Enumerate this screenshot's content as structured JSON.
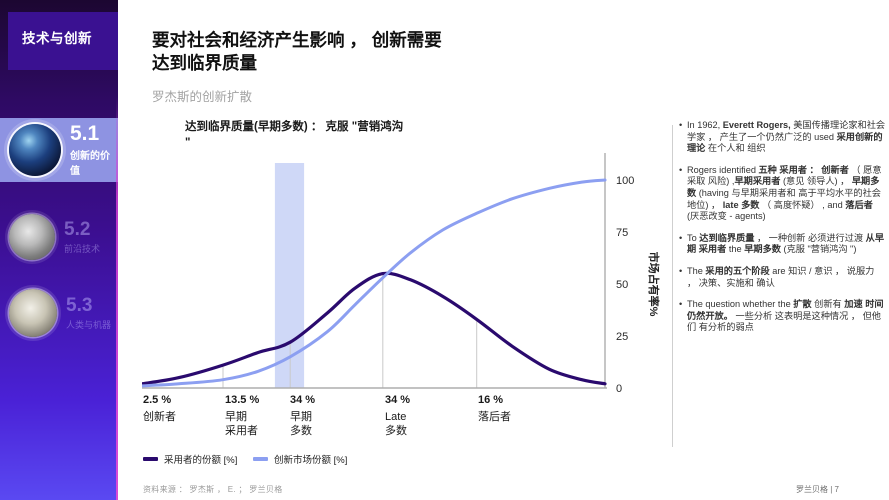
{
  "colors": {
    "band": "#c7d1f6",
    "grid": "#c9c9c9",
    "axis": "#adadad",
    "series_dark": "#2a0a6e",
    "series_light": "#8c9ff1"
  },
  "sidebar": {
    "header": "技术与创新",
    "items": [
      {
        "num": "5.1",
        "label": "创新的价值"
      },
      {
        "num": "5.2",
        "label": "前沿技术"
      },
      {
        "num": "5.3",
        "label": "人类与机器"
      }
    ]
  },
  "header": {
    "title_line1": "要对社会和经济产生影响 ， 创新需要",
    "title_line2": "达到临界质量",
    "subtitle": "罗杰斯的创新扩散"
  },
  "chart": {
    "title_line1": "达到临界质量(早期多数) ： 克服 \"营销鸿沟",
    "title_line2": "\""
  },
  "chart_data": {
    "type": "line",
    "title": "达到临界质量(早期多数) ： 克服 \"营销鸿沟\"",
    "ylabel": "市场占有率%",
    "ylim": [
      0,
      100
    ],
    "yticks": [
      0,
      25,
      50,
      75,
      100
    ],
    "grid": "vertical segment separators only",
    "legend_position": "bottom-left",
    "segment_shares_pct": [
      2.5,
      13.5,
      34,
      34,
      16
    ],
    "categories": [
      {
        "pct": "2.5 %",
        "line1": "创新者",
        "line2": ""
      },
      {
        "pct": "13.5 %",
        "line1": "早期",
        "line2": "采用者"
      },
      {
        "pct": "34 %",
        "line1": "早期",
        "line2": "多数"
      },
      {
        "pct": "34 %",
        "line1": "Late",
        "line2": "多数"
      },
      {
        "pct": "16 %",
        "line1": "落后者",
        "line2": ""
      }
    ],
    "boundaries_t": [
      0.175,
      0.32,
      0.52,
      0.723
    ],
    "chasm_band_t": [
      0.287,
      0.35
    ],
    "series": [
      {
        "name": "采用者的份额 [%]",
        "color": "#2a0a6e",
        "x": [
          0,
          0.08,
          0.175,
          0.25,
          0.32,
          0.4,
          0.46,
          0.52,
          0.58,
          0.65,
          0.723,
          0.8,
          0.88,
          0.95,
          1
        ],
        "y": [
          2,
          5,
          11,
          17,
          22,
          36,
          48,
          55,
          52,
          44,
          33,
          20,
          9,
          4,
          2
        ]
      },
      {
        "name": "创新市场份额 [%]",
        "color": "#8c9ff1",
        "x": [
          0,
          0.08,
          0.175,
          0.25,
          0.32,
          0.4,
          0.46,
          0.52,
          0.58,
          0.65,
          0.723,
          0.8,
          0.88,
          0.95,
          1
        ],
        "y": [
          1,
          2,
          4,
          8,
          15,
          27,
          40,
          53,
          65,
          76,
          84,
          91,
          96,
          99,
          100
        ]
      }
    ]
  },
  "legend": [
    {
      "label": "采用者的份额 [%]"
    },
    {
      "label": "创新市场份额 [%]"
    }
  ],
  "panel": {
    "bullets": [
      {
        "segments": [
          {
            "t": "In 1962,  "
          },
          {
            "t": "Everett Rogers,",
            "b": true
          },
          {
            "t": " 美国传播理论家和社会学家 ， 产生了一个仍然广泛的 used "
          },
          {
            "t": "采用创新的理论",
            "b": true
          },
          {
            "t": " 在个人和 组织"
          }
        ]
      },
      {
        "segments": [
          {
            "t": "Rogers identified  "
          },
          {
            "t": "五种 采用者 ： 创新者",
            "b": true
          },
          {
            "t": " （ 愿意采取 风险) ,"
          },
          {
            "t": "早期采用者",
            "b": true
          },
          {
            "t": " (意见 领导人) ， "
          },
          {
            "t": "早期多数",
            "b": true
          },
          {
            "t": " (having 与早期采用者和 高于平均水平的社会地位) ， "
          },
          {
            "t": "late 多数",
            "b": true
          },
          {
            "t": " （ 高度怀疑） , and "
          },
          {
            "t": "落后者",
            "b": true
          },
          {
            "t": " (厌恶改变 - agents)"
          }
        ]
      },
      {
        "segments": [
          {
            "t": "To "
          },
          {
            "t": "达到临界质量",
            "b": true
          },
          {
            "t": " ，  一种创新 必须进行过渡  "
          },
          {
            "t": "从早期 采用者",
            "b": true
          },
          {
            "t": "  the "
          },
          {
            "t": "早期多数",
            "b": true
          },
          {
            "t": " (克服 \"营销鸿沟 \")"
          }
        ]
      },
      {
        "segments": [
          {
            "t": "The "
          },
          {
            "t": "采用的五个阶段",
            "b": true
          },
          {
            "t": "  are 知识 / 意识 ， 说服力 ， 决策、实施和 确认"
          }
        ]
      },
      {
        "segments": [
          {
            "t": "The question whether the  "
          },
          {
            "t": "扩散",
            "b": true
          },
          {
            "t": " 创新有 "
          },
          {
            "t": "加速 时间仍然开放。",
            "b": true
          },
          {
            "t": "  一些分析 这表明是这种情况 ， 但他们 有分析的弱点"
          }
        ]
      }
    ]
  },
  "footer": {
    "source": "资料来源 ： 罗杰斯 ， E. ； 罗兰贝格",
    "page": "罗兰贝格 | 7"
  }
}
